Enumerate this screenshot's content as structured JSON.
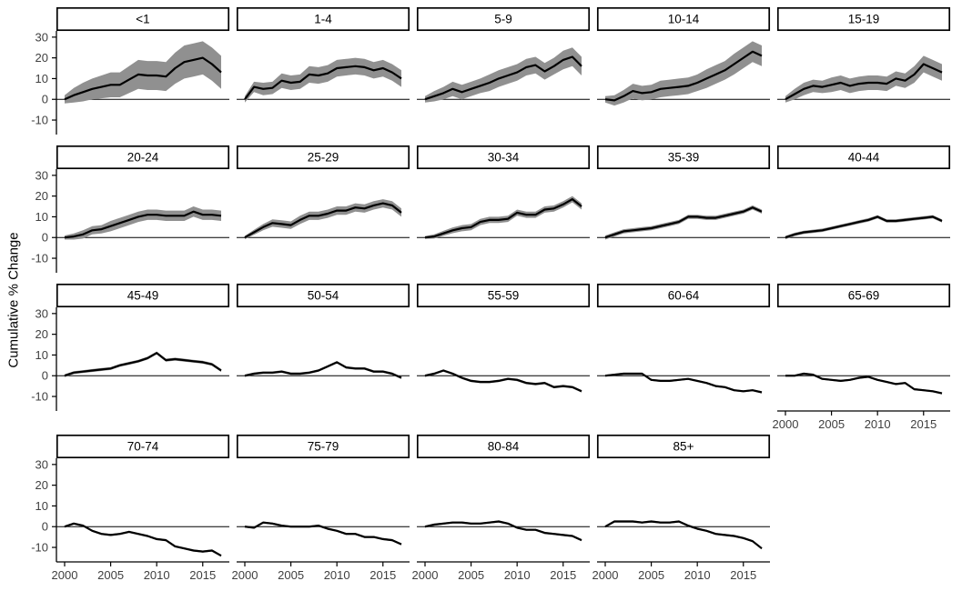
{
  "chart_data": {
    "type": "line",
    "layout": "facet-grid",
    "title": "",
    "ylabel": "Cumulative % Change",
    "xlabel": "",
    "grid": "off",
    "legend": "none",
    "facets_per_row": 5,
    "years": [
      2000,
      2001,
      2002,
      2003,
      2004,
      2005,
      2006,
      2007,
      2008,
      2009,
      2010,
      2011,
      2012,
      2013,
      2014,
      2015,
      2016,
      2017
    ],
    "x_ticks": [
      2000,
      2005,
      2010,
      2015
    ],
    "y_ticks": [
      30,
      20,
      10,
      0,
      -10
    ],
    "ylim": [
      -17,
      33
    ],
    "colors": {
      "line": "#000000",
      "band": "#909090",
      "axis": "#000000",
      "tick_label": "#404040",
      "strip_border": "#000000",
      "strip_fill": "#ffffff",
      "zero_line": "#000000"
    },
    "facets": [
      {
        "label": "<1",
        "values": [
          0,
          2,
          3.5,
          5,
          6,
          7,
          7,
          9.5,
          12,
          11.5,
          11.5,
          11,
          15,
          18,
          19,
          20,
          17,
          13
        ],
        "ci": [
          2,
          3.5,
          4.5,
          5,
          5.5,
          6,
          6,
          6.5,
          7,
          7,
          7,
          7,
          7.5,
          8,
          8,
          8,
          8,
          8
        ]
      },
      {
        "label": "1-4",
        "values": [
          0,
          6,
          5,
          5.5,
          9,
          8,
          8.5,
          12,
          11.5,
          12.5,
          15,
          15.5,
          16,
          15.5,
          14,
          15,
          13,
          10
        ],
        "ci": [
          1.5,
          2.5,
          3,
          3,
          3.5,
          3.5,
          3.5,
          4,
          4,
          4,
          4,
          4,
          4,
          4,
          4,
          4,
          4,
          4
        ]
      },
      {
        "label": "5-9",
        "values": [
          0,
          1.5,
          3,
          5,
          3.5,
          5,
          6.5,
          8,
          10,
          11.5,
          13,
          15.5,
          16.5,
          13.5,
          16,
          19,
          20.5,
          16
        ],
        "ci": [
          1.5,
          2.5,
          3,
          3.5,
          3.5,
          3.5,
          3.5,
          4,
          4,
          4,
          4,
          4,
          4,
          4,
          4,
          4.5,
          4.5,
          4.5
        ]
      },
      {
        "label": "10-14",
        "values": [
          0,
          -0.5,
          1.5,
          4,
          3,
          3.5,
          5,
          5.5,
          6,
          6.5,
          8,
          10,
          12,
          14,
          17,
          20,
          23,
          21
        ],
        "ci": [
          1.5,
          2.5,
          3,
          3.5,
          3.5,
          3.5,
          4,
          4,
          4,
          4,
          4,
          4.5,
          4.5,
          4.5,
          5,
          5,
          5,
          5
        ]
      },
      {
        "label": "15-19",
        "values": [
          0,
          2.5,
          5,
          6.5,
          6,
          7,
          8,
          6.5,
          7.5,
          8,
          8,
          7.5,
          10,
          9,
          12,
          17,
          15,
          13
        ],
        "ci": [
          1.5,
          2.5,
          3,
          3,
          3,
          3.5,
          3.5,
          3.5,
          3.5,
          3.5,
          3.5,
          3.5,
          3.5,
          3.5,
          4,
          4,
          4,
          4
        ]
      },
      {
        "label": "20-24",
        "values": [
          0,
          0.5,
          1.5,
          3.5,
          4,
          5.5,
          7,
          8.5,
          10,
          11,
          11,
          10.5,
          10.5,
          10.5,
          12.5,
          11,
          11,
          10.5
        ],
        "ci": [
          1,
          1.5,
          2,
          2,
          2,
          2.5,
          2.5,
          2.5,
          2.5,
          2.5,
          2.5,
          2.5,
          2.5,
          2.5,
          2.5,
          2.5,
          2.5,
          2.5
        ]
      },
      {
        "label": "25-29",
        "values": [
          0,
          2.5,
          5,
          7,
          6.5,
          6,
          8.5,
          10.5,
          10.5,
          11.5,
          13,
          13,
          14.5,
          14,
          15.5,
          16.5,
          15.5,
          12
        ],
        "ci": [
          0.8,
          1.2,
          1.5,
          1.8,
          1.8,
          1.8,
          2,
          2,
          2,
          2,
          2,
          2,
          2,
          2,
          2,
          2,
          2,
          2
        ]
      },
      {
        "label": "30-34",
        "values": [
          0,
          0.5,
          2,
          3.5,
          4.5,
          5,
          7.5,
          8.5,
          8.5,
          9,
          12,
          11,
          11,
          13.5,
          14,
          16,
          18.5,
          15
        ],
        "ci": [
          0.7,
          1,
          1.2,
          1.4,
          1.5,
          1.5,
          1.5,
          1.5,
          1.5,
          1.5,
          1.5,
          1.5,
          1.5,
          1.5,
          1.5,
          1.5,
          1.5,
          1.5
        ]
      },
      {
        "label": "35-39",
        "values": [
          0,
          1.5,
          3,
          3.5,
          4,
          4.5,
          5.5,
          6.5,
          7.5,
          10,
          10,
          9.5,
          9.5,
          10.5,
          11.5,
          12.5,
          14.5,
          12.5
        ],
        "ci": 1
      },
      {
        "label": "40-44",
        "values": [
          0,
          1.5,
          2.5,
          3,
          3.5,
          4.5,
          5.5,
          6.5,
          7.5,
          8.5,
          10,
          8,
          8,
          8.5,
          9,
          9.5,
          10,
          8
        ],
        "ci": 0.8
      },
      {
        "label": "45-49",
        "values": [
          0,
          1.5,
          2,
          2.5,
          3,
          3.5,
          5,
          6,
          7,
          8.5,
          11,
          7.5,
          8,
          7.5,
          7,
          6.5,
          5.5,
          2.5
        ],
        "ci": 0.7
      },
      {
        "label": "50-54",
        "values": [
          0,
          1,
          1.5,
          1.5,
          2,
          1,
          1,
          1.5,
          2.5,
          4.5,
          6.5,
          4,
          3.5,
          3.5,
          2,
          2,
          1,
          -1
        ],
        "ci": 0.6
      },
      {
        "label": "55-59",
        "values": [
          0,
          1,
          2.5,
          1,
          -1,
          -2.5,
          -3,
          -3,
          -2.5,
          -1.5,
          -2,
          -3.5,
          -4,
          -3.5,
          -5.5,
          -5,
          -5.5,
          -7.5
        ],
        "ci": 0.6
      },
      {
        "label": "60-64",
        "values": [
          0,
          0.5,
          1,
          1,
          1,
          -2,
          -2.5,
          -2.5,
          -2,
          -1.5,
          -2.5,
          -3.5,
          -5,
          -5.5,
          -7,
          -7.5,
          -7,
          -8
        ],
        "ci": 0.5
      },
      {
        "label": "65-69",
        "values": [
          0,
          0,
          1,
          0.5,
          -1.5,
          -2,
          -2.5,
          -2,
          -1,
          -0.5,
          -2,
          -3,
          -4,
          -3.5,
          -6.5,
          -7,
          -7.5,
          -8.5
        ],
        "ci": 0.5
      },
      {
        "label": "70-74",
        "values": [
          0,
          1.5,
          0.5,
          -2,
          -3.5,
          -4,
          -3.5,
          -2.5,
          -3.5,
          -4.5,
          -6,
          -6.5,
          -9.5,
          -10.5,
          -11.5,
          -12,
          -11.5,
          -14
        ],
        "ci": 0.5
      },
      {
        "label": "75-79",
        "values": [
          0,
          -0.5,
          2,
          1.5,
          0.5,
          0,
          0,
          0,
          0.5,
          -1,
          -2,
          -3.5,
          -3.5,
          -5,
          -5,
          -6,
          -6.5,
          -8.5
        ],
        "ci": 0.5
      },
      {
        "label": "80-84",
        "values": [
          0,
          1,
          1.5,
          2,
          2,
          1.5,
          1.5,
          2,
          2.5,
          1.5,
          -0.5,
          -1.5,
          -1.5,
          -3,
          -3.5,
          -4,
          -4.5,
          -6.5
        ],
        "ci": 0.5
      },
      {
        "label": "85+",
        "values": [
          0,
          2.5,
          2.5,
          2.5,
          2,
          2.5,
          2,
          2,
          2.5,
          0.5,
          -1,
          -2,
          -3.5,
          -4,
          -4.5,
          -5.5,
          -7,
          -10.5
        ],
        "ci": 0.5
      }
    ]
  }
}
